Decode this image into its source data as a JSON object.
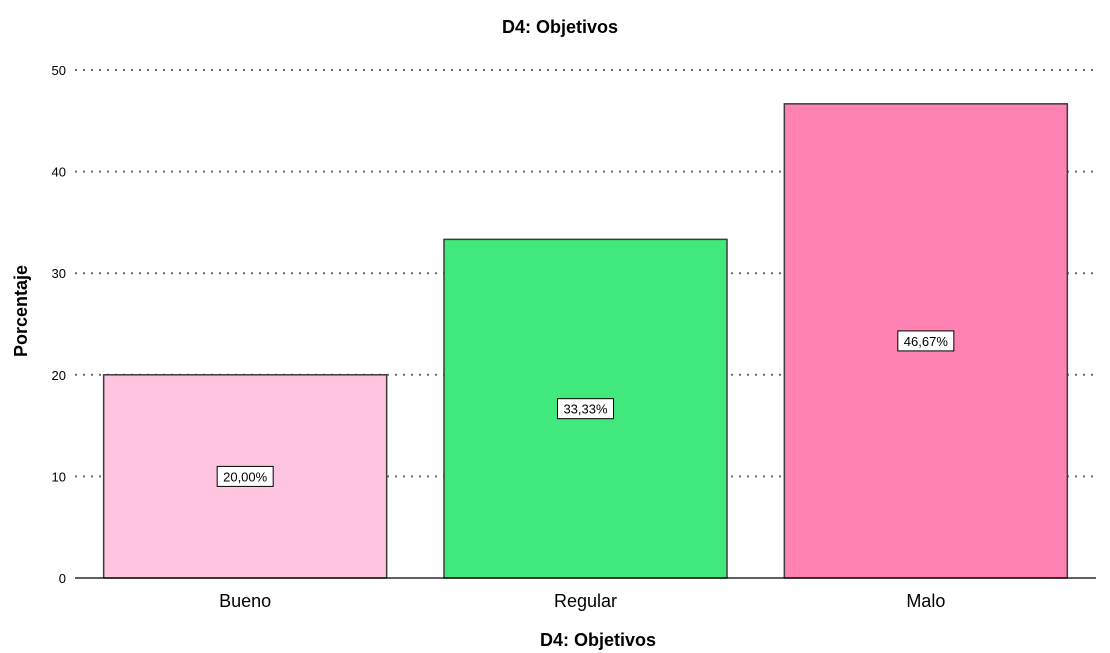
{
  "chart_data": {
    "type": "bar",
    "title": "D4: Objetivos",
    "xlabel": "D4: Objetivos",
    "ylabel": "Porcentaje",
    "categories": [
      "Bueno",
      "Regular",
      "Malo"
    ],
    "values": [
      20.0,
      33.33,
      46.67
    ],
    "data_labels": [
      "20,00%",
      "33,33%",
      "46,67%"
    ],
    "colors": [
      "#fec4e0",
      "#41e97d",
      "#fe82b2"
    ],
    "ylim": [
      0,
      50
    ],
    "yticks": [
      0,
      10,
      20,
      30,
      40,
      50
    ],
    "grid": true,
    "legend": "none"
  }
}
